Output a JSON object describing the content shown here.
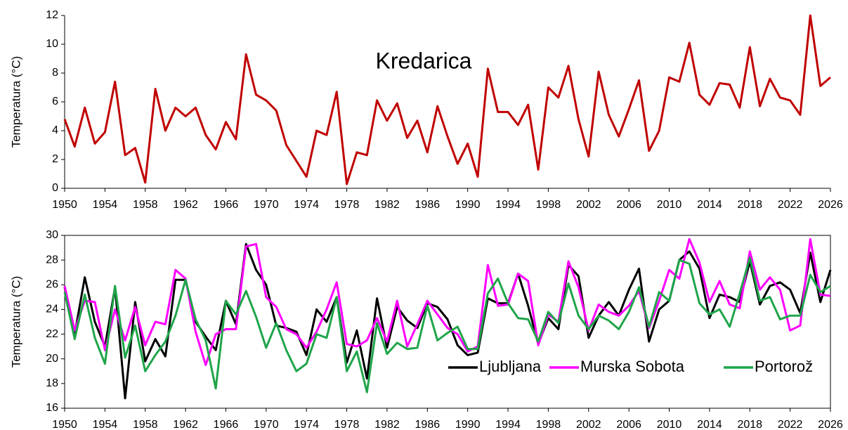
{
  "chart_data": [
    {
      "type": "line",
      "title": "Kredarica",
      "y_label": "Temperatura (°C)",
      "x": [
        1950,
        1951,
        1952,
        1953,
        1954,
        1955,
        1956,
        1957,
        1958,
        1959,
        1960,
        1961,
        1962,
        1963,
        1964,
        1965,
        1966,
        1967,
        1968,
        1969,
        1970,
        1971,
        1972,
        1973,
        1974,
        1975,
        1976,
        1977,
        1978,
        1979,
        1980,
        1981,
        1982,
        1983,
        1984,
        1985,
        1986,
        1987,
        1988,
        1989,
        1990,
        1991,
        1992,
        1993,
        1994,
        1995,
        1996,
        1997,
        1998,
        1999,
        2000,
        2001,
        2002,
        2003,
        2004,
        2005,
        2006,
        2007,
        2008,
        2009,
        2010,
        2011,
        2012,
        2013,
        2014,
        2015,
        2016,
        2017,
        2018,
        2019,
        2020,
        2021,
        2022,
        2023,
        2024,
        2025,
        2026
      ],
      "values": [
        4.8,
        2.9,
        5.6,
        3.1,
        3.9,
        7.4,
        2.3,
        2.8,
        0.4,
        6.9,
        4.0,
        5.6,
        5.0,
        5.6,
        3.7,
        2.7,
        4.6,
        3.4,
        9.3,
        6.5,
        6.1,
        5.4,
        3.0,
        1.9,
        0.8,
        4.0,
        3.7,
        6.7,
        0.3,
        2.5,
        2.3,
        6.1,
        4.7,
        5.9,
        3.5,
        4.7,
        2.5,
        5.7,
        3.6,
        1.7,
        3.1,
        0.8,
        8.3,
        5.3,
        5.3,
        4.4,
        5.8,
        1.3,
        7.0,
        6.3,
        8.5,
        4.8,
        2.2,
        8.1,
        5.1,
        3.6,
        5.5,
        7.5,
        2.6,
        4.0,
        7.7,
        7.4,
        10.1,
        6.5,
        5.8,
        7.3,
        7.2,
        5.6,
        9.8,
        5.7,
        7.6,
        6.3,
        6.1,
        5.1,
        12.0,
        7.1,
        7.7
      ],
      "color": "#c00000",
      "xlim": [
        1950,
        2026
      ],
      "xticks": [
        1950,
        1954,
        1958,
        1962,
        1966,
        1970,
        1974,
        1978,
        1982,
        1986,
        1990,
        1994,
        1998,
        2002,
        2006,
        2010,
        2014,
        2018,
        2022,
        2026
      ],
      "ylim": [
        0,
        12
      ],
      "yticks": [
        0,
        2,
        4,
        6,
        8,
        10,
        12
      ]
    },
    {
      "type": "line",
      "y_label": "Temperatura (°C)",
      "legend": "lower right",
      "x": [
        1950,
        1951,
        1952,
        1953,
        1954,
        1955,
        1956,
        1957,
        1958,
        1959,
        1960,
        1961,
        1962,
        1963,
        1964,
        1965,
        1966,
        1967,
        1968,
        1969,
        1970,
        1971,
        1972,
        1973,
        1974,
        1975,
        1976,
        1977,
        1978,
        1979,
        1980,
        1981,
        1982,
        1983,
        1984,
        1985,
        1986,
        1987,
        1988,
        1989,
        1990,
        1991,
        1992,
        1993,
        1994,
        1995,
        1996,
        1997,
        1998,
        1999,
        2000,
        2001,
        2002,
        2003,
        2004,
        2005,
        2006,
        2007,
        2008,
        2009,
        2010,
        2011,
        2012,
        2013,
        2014,
        2015,
        2016,
        2017,
        2018,
        2019,
        2020,
        2021,
        2022,
        2023,
        2024,
        2025,
        2026
      ],
      "series": [
        {
          "name": "Ljubljana",
          "color": "#000000",
          "values": [
            25.8,
            22.0,
            26.6,
            23.0,
            21.0,
            25.8,
            16.8,
            24.6,
            19.8,
            21.6,
            20.2,
            26.4,
            26.4,
            23.0,
            21.8,
            20.7,
            24.7,
            22.8,
            29.3,
            27.2,
            26.0,
            22.7,
            22.5,
            22.2,
            20.3,
            24.0,
            23.0,
            25.0,
            19.7,
            22.3,
            18.4,
            24.9,
            20.9,
            24.2,
            23.1,
            22.5,
            24.5,
            24.2,
            23.2,
            21.1,
            20.3,
            20.5,
            24.9,
            24.5,
            24.5,
            26.9,
            24.3,
            21.2,
            23.3,
            22.4,
            27.6,
            26.7,
            21.7,
            23.5,
            24.6,
            23.5,
            25.6,
            27.3,
            21.4,
            24.0,
            24.7,
            28.0,
            28.7,
            27.3,
            23.3,
            25.2,
            25.0,
            24.6,
            27.9,
            24.4,
            25.9,
            26.2,
            25.6,
            23.7,
            28.6,
            24.6,
            27.2
          ]
        },
        {
          "name": "Murska Sobota",
          "color": "#ff00ff",
          "values": [
            25.9,
            22.3,
            24.7,
            24.6,
            20.7,
            24.0,
            21.5,
            24.2,
            21.1,
            23.0,
            22.8,
            27.2,
            26.5,
            22.2,
            19.5,
            22.0,
            22.4,
            22.4,
            29.1,
            29.3,
            25.0,
            24.2,
            22.4,
            22.0,
            20.9,
            22.2,
            24.0,
            26.2,
            21.2,
            21.0,
            21.5,
            23.3,
            21.4,
            24.7,
            21.0,
            22.8,
            24.7,
            23.6,
            22.5,
            22.0,
            20.6,
            21.0,
            27.6,
            24.3,
            24.4,
            26.9,
            26.3,
            21.1,
            23.6,
            23.0,
            27.9,
            25.8,
            22.3,
            24.4,
            23.8,
            23.5,
            24.3,
            25.5,
            22.5,
            24.7,
            27.2,
            26.5,
            29.7,
            27.8,
            24.6,
            26.3,
            24.4,
            24.1,
            28.7,
            25.6,
            26.6,
            25.6,
            22.3,
            22.7,
            29.7,
            25.2,
            25.1
          ]
        },
        {
          "name": "Portorož",
          "color": "#1fa54a",
          "values": [
            25.4,
            21.6,
            25.2,
            21.7,
            19.6,
            25.9,
            20.1,
            22.7,
            19.0,
            20.3,
            21.4,
            23.5,
            26.4,
            23.2,
            21.5,
            17.6,
            24.7,
            23.6,
            25.5,
            23.4,
            20.9,
            22.9,
            20.7,
            19.0,
            19.6,
            22.0,
            21.7,
            25.0,
            19.0,
            20.6,
            17.3,
            22.9,
            20.4,
            21.3,
            20.8,
            20.9,
            24.3,
            21.5,
            22.1,
            22.6,
            20.8,
            20.8,
            25.3,
            26.5,
            24.5,
            23.3,
            23.2,
            21.4,
            23.8,
            22.9,
            26.1,
            23.5,
            22.4,
            23.5,
            23.1,
            22.4,
            23.8,
            25.8,
            22.6,
            25.4,
            24.7,
            28.0,
            27.7,
            24.5,
            23.6,
            24.0,
            22.6,
            25.3,
            28.2,
            24.7,
            25.0,
            23.2,
            23.5,
            23.5,
            26.8,
            25.4,
            25.9
          ]
        }
      ],
      "xlim": [
        1950,
        2026
      ],
      "xticks": [
        1950,
        1954,
        1958,
        1962,
        1966,
        1970,
        1974,
        1978,
        1982,
        1986,
        1990,
        1994,
        1998,
        2002,
        2006,
        2010,
        2014,
        2018,
        2022,
        2026
      ],
      "ylim": [
        16,
        30
      ],
      "yticks": [
        16,
        18,
        20,
        22,
        24,
        26,
        28,
        30
      ]
    }
  ]
}
